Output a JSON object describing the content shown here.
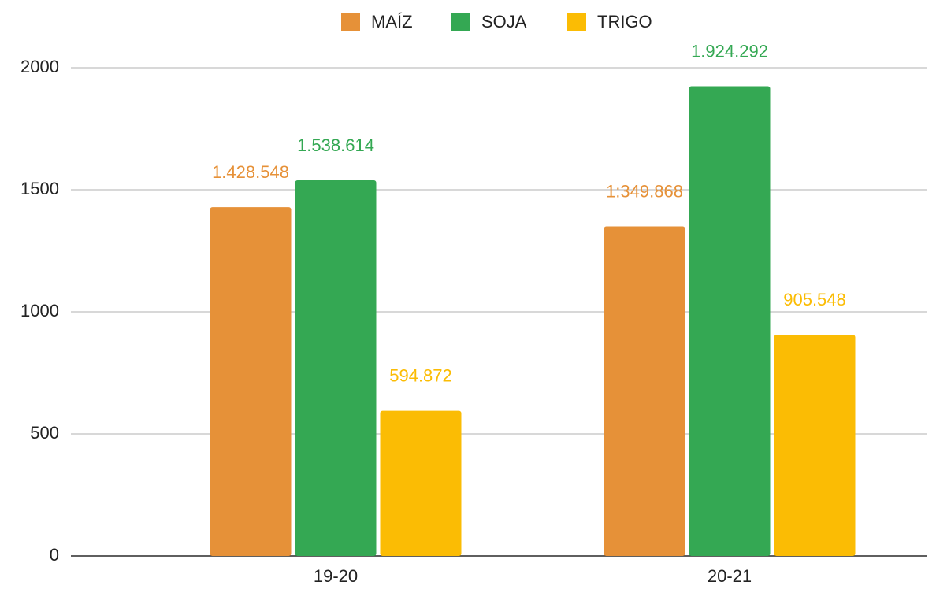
{
  "chart_data": {
    "type": "bar",
    "categories": [
      "19-20",
      "20-21"
    ],
    "series": [
      {
        "name": "MAÍZ",
        "color": "#e69138",
        "values": [
          1428.548,
          1349.868
        ],
        "value_labels": [
          "1.428.548",
          "1:349.868"
        ]
      },
      {
        "name": "SOJA",
        "color": "#34a853",
        "values": [
          1538.614,
          1924.292
        ],
        "value_labels": [
          "1.538.614",
          "1.924.292"
        ]
      },
      {
        "name": "TRIGO",
        "color": "#fbbc04",
        "values": [
          594.872,
          905.548
        ],
        "value_labels": [
          "594.872",
          "905.548"
        ]
      }
    ],
    "ylim": [
      0,
      2000
    ],
    "yticks": [
      0,
      500,
      1000,
      1500,
      2000
    ],
    "grid": true,
    "legend": "top"
  }
}
